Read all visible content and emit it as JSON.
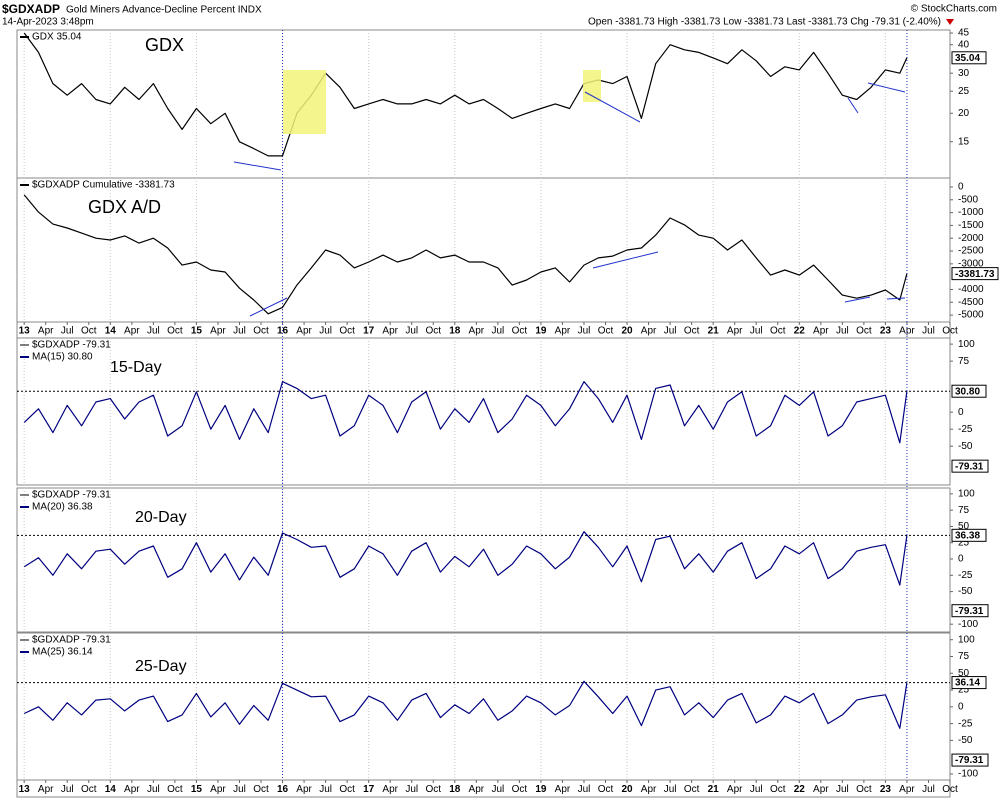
{
  "chart_data": {
    "type": "line",
    "title": "$GDXADP",
    "subtitle": "Gold Miners Advance-Decline Percent INDX",
    "date": "14-Apr-2023 3:48pm",
    "quote": "Open -3381.73  High -3381.73  Low -3381.73  Last -3381.73  Chg -79.31 (-2.40%)",
    "credit": "© StockCharts.com",
    "grid": true,
    "xlim": [
      "2012-12",
      "2023-10"
    ],
    "vlines": [
      "2016-01",
      "2023-04"
    ],
    "xticks": [
      {
        "value": "2013-01",
        "label": "13"
      },
      {
        "value": "2013-04",
        "label": "Apr"
      },
      {
        "value": "2013-07",
        "label": "Jul"
      },
      {
        "value": "2013-10",
        "label": "Oct"
      },
      {
        "value": "2014-01",
        "label": "14"
      },
      {
        "value": "2014-04",
        "label": "Apr"
      },
      {
        "value": "2014-07",
        "label": "Jul"
      },
      {
        "value": "2014-10",
        "label": "Oct"
      },
      {
        "value": "2015-01",
        "label": "15"
      },
      {
        "value": "2015-04",
        "label": "Apr"
      },
      {
        "value": "2015-07",
        "label": "Jul"
      },
      {
        "value": "2015-10",
        "label": "Oct"
      },
      {
        "value": "2016-01",
        "label": "16"
      },
      {
        "value": "2016-04",
        "label": "Apr"
      },
      {
        "value": "2016-07",
        "label": "Jul"
      },
      {
        "value": "2016-10",
        "label": "Oct"
      },
      {
        "value": "2017-01",
        "label": "17"
      },
      {
        "value": "2017-04",
        "label": "Apr"
      },
      {
        "value": "2017-07",
        "label": "Jul"
      },
      {
        "value": "2017-10",
        "label": "Oct"
      },
      {
        "value": "2018-01",
        "label": "18"
      },
      {
        "value": "2018-04",
        "label": "Apr"
      },
      {
        "value": "2018-07",
        "label": "Jul"
      },
      {
        "value": "2018-10",
        "label": "Oct"
      },
      {
        "value": "2019-01",
        "label": "19"
      },
      {
        "value": "2019-04",
        "label": "Apr"
      },
      {
        "value": "2019-07",
        "label": "Jul"
      },
      {
        "value": "2019-10",
        "label": "Oct"
      },
      {
        "value": "2020-01",
        "label": "20"
      },
      {
        "value": "2020-04",
        "label": "Apr"
      },
      {
        "value": "2020-07",
        "label": "Jul"
      },
      {
        "value": "2020-10",
        "label": "Oct"
      },
      {
        "value": "2021-01",
        "label": "21"
      },
      {
        "value": "2021-04",
        "label": "Apr"
      },
      {
        "value": "2021-07",
        "label": "Jul"
      },
      {
        "value": "2021-10",
        "label": "Oct"
      },
      {
        "value": "2022-01",
        "label": "22"
      },
      {
        "value": "2022-04",
        "label": "Apr"
      },
      {
        "value": "2022-07",
        "label": "Jul"
      },
      {
        "value": "2022-10",
        "label": "Oct"
      },
      {
        "value": "2023-01",
        "label": "23"
      },
      {
        "value": "2023-04",
        "label": "Apr"
      },
      {
        "value": "2023-07",
        "label": "Jul"
      },
      {
        "value": "2023-10",
        "label": "Oct"
      }
    ],
    "x": [
      "2013-01",
      "2013-03",
      "2013-05",
      "2013-07",
      "2013-09",
      "2013-11",
      "2014-01",
      "2014-03",
      "2014-05",
      "2014-07",
      "2014-09",
      "2014-11",
      "2015-01",
      "2015-03",
      "2015-05",
      "2015-07",
      "2015-09",
      "2015-11",
      "2016-01",
      "2016-03",
      "2016-05",
      "2016-07",
      "2016-09",
      "2016-11",
      "2017-01",
      "2017-03",
      "2017-05",
      "2017-07",
      "2017-09",
      "2017-11",
      "2018-01",
      "2018-03",
      "2018-05",
      "2018-07",
      "2018-09",
      "2018-11",
      "2019-01",
      "2019-03",
      "2019-05",
      "2019-07",
      "2019-09",
      "2019-11",
      "2020-01",
      "2020-03",
      "2020-05",
      "2020-07",
      "2020-09",
      "2020-11",
      "2021-01",
      "2021-03",
      "2021-05",
      "2021-07",
      "2021-09",
      "2021-11",
      "2022-01",
      "2022-03",
      "2022-05",
      "2022-07",
      "2022-09",
      "2022-11",
      "2023-01",
      "2023-03",
      "2023-04"
    ],
    "panels": [
      {
        "label": "GDX",
        "log": true,
        "ylim": [
          10.4,
          46.4
        ],
        "yticks": [
          15,
          20,
          25,
          30,
          40,
          45
        ],
        "series": [
          {
            "name": "GDX 35.04",
            "color": "#000000",
            "values": [
              45,
              37,
              27,
              24,
              27,
              23,
              22,
              26,
              23,
              27,
              21,
              17,
              21,
              18,
              20,
              15,
              14,
              13,
              13,
              20,
              24,
              30,
              26,
              21,
              22,
              23,
              22,
              22,
              23,
              22,
              24,
              22,
              23,
              21,
              19,
              20,
              21,
              22,
              21,
              27,
              28,
              27,
              29,
              19,
              33,
              40,
              38,
              37,
              35,
              33,
              38,
              34,
              29,
              32,
              31,
              37,
              30,
              24,
              23,
              26,
              31,
              30,
              35.04
            ]
          }
        ]
      },
      {
        "label": "GDX A/D",
        "log": false,
        "ylim": [
          -5270,
          350
        ],
        "yticks": [
          0,
          -500,
          -1000,
          -1500,
          -2000,
          -2500,
          -3000,
          -4000,
          -4500,
          -5000
        ],
        "series": [
          {
            "name": "$GDXADP Cumulative -3381.73",
            "color": "#000000",
            "values": [
              -310,
              -980,
              -1450,
              -1600,
              -1800,
              -2000,
              -2070,
              -1910,
              -2190,
              -2000,
              -2380,
              -3050,
              -2930,
              -3240,
              -3320,
              -3950,
              -4410,
              -4950,
              -4700,
              -3830,
              -3160,
              -2460,
              -2660,
              -3160,
              -2930,
              -2660,
              -2930,
              -2770,
              -2460,
              -2770,
              -2660,
              -2930,
              -2930,
              -3160,
              -3830,
              -3630,
              -3320,
              -3160,
              -3710,
              -3050,
              -2770,
              -2700,
              -2460,
              -2380,
              -1880,
              -1210,
              -1480,
              -1880,
              -2000,
              -2460,
              -2070,
              -2770,
              -3440,
              -3240,
              -3440,
              -3050,
              -3630,
              -4220,
              -4340,
              -4220,
              -4020,
              -4410,
              -3381.73
            ]
          }
        ]
      },
      {
        "label": "15-Day",
        "log": false,
        "ylim": [
          -107,
          109
        ],
        "yticks": [
          100,
          75,
          0,
          -25,
          -50
        ],
        "raw_name": "$GDXADP -79.31",
        "raw_value": -79.31,
        "last_label": "30.80",
        "last_line": true,
        "series": [
          {
            "name": "MA(15) 30.80",
            "color": "#000080",
            "values": [
              -15,
              5,
              -30,
              10,
              -20,
              15,
              20,
              -10,
              15,
              25,
              -35,
              -20,
              30,
              -25,
              10,
              -40,
              5,
              -30,
              45,
              35,
              20,
              25,
              -35,
              -20,
              25,
              10,
              -30,
              15,
              30,
              -25,
              5,
              -15,
              20,
              -30,
              -10,
              25,
              10,
              -20,
              5,
              45,
              20,
              -15,
              25,
              -40,
              35,
              40,
              -20,
              10,
              -25,
              15,
              30,
              -35,
              -20,
              25,
              10,
              30,
              -35,
              -20,
              15,
              20,
              25,
              -45,
              30.8
            ]
          }
        ]
      },
      {
        "label": "20-Day",
        "log": false,
        "ylim": [
          -112,
          109
        ],
        "yticks": [
          100,
          75,
          50,
          25,
          0,
          -25,
          -50,
          -100
        ],
        "raw_name": "$GDXADP -79.31",
        "raw_value": -79.31,
        "last_line": true,
        "series": [
          {
            "name": "MA(20) 36.38",
            "color": "#000080",
            "values": [
              -12,
              2,
              -25,
              8,
              -15,
              12,
              15,
              -8,
              12,
              20,
              -28,
              -15,
              25,
              -20,
              8,
              -32,
              3,
              -25,
              40,
              30,
              18,
              20,
              -28,
              -15,
              20,
              8,
              -25,
              12,
              25,
              -20,
              4,
              -12,
              15,
              -25,
              -8,
              20,
              8,
              -15,
              3,
              42,
              18,
              -12,
              20,
              -35,
              30,
              35,
              -15,
              8,
              -20,
              12,
              25,
              -30,
              -15,
              20,
              8,
              25,
              -30,
              -15,
              12,
              18,
              22,
              -40,
              36.38
            ]
          }
        ]
      },
      {
        "label": "25-Day",
        "log": false,
        "ylim": [
          -109,
          110
        ],
        "yticks": [
          100,
          75,
          50,
          25,
          0,
          -25,
          -50,
          -100
        ],
        "raw_name": "$GDXADP -79.31",
        "raw_value": -79.31,
        "last_line": true,
        "series": [
          {
            "name": "MA(25) 36.14",
            "color": "#000080",
            "values": [
              -10,
              0,
              -20,
              6,
              -12,
              10,
              12,
              -6,
              10,
              16,
              -22,
              -12,
              20,
              -15,
              6,
              -26,
              2,
              -20,
              35,
              25,
              15,
              16,
              -22,
              -12,
              16,
              6,
              -20,
              10,
              20,
              -16,
              3,
              -10,
              12,
              -20,
              -6,
              16,
              6,
              -12,
              2,
              38,
              15,
              -10,
              16,
              -28,
              25,
              30,
              -12,
              6,
              -16,
              10,
              20,
              -24,
              -12,
              16,
              6,
              20,
              -25,
              -12,
              10,
              15,
              18,
              -32,
              36.14
            ]
          }
        ]
      }
    ]
  }
}
